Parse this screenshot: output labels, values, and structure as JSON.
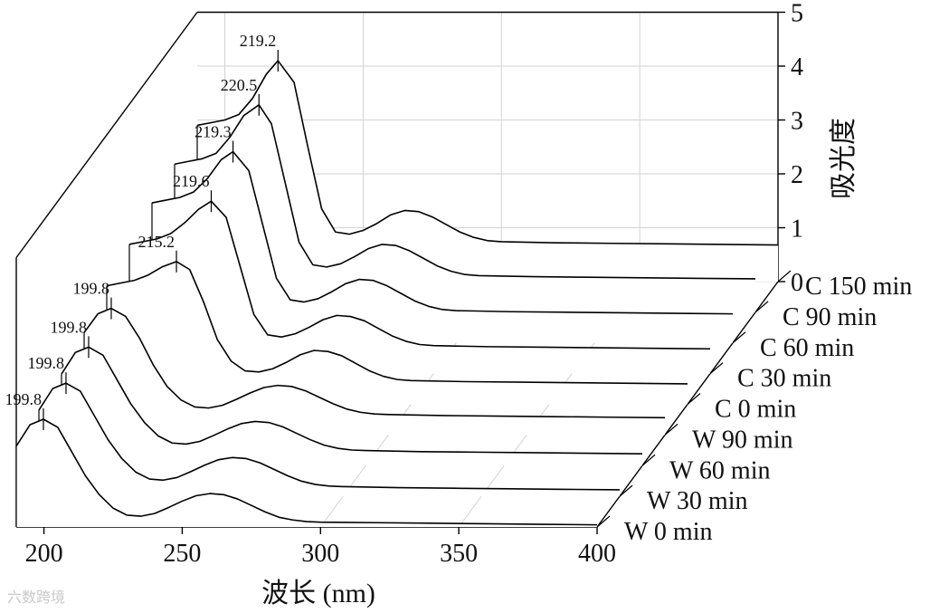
{
  "chart_data": {
    "type": "line",
    "subtype": "3d-waterfall",
    "xlabel": "波长 (nm)",
    "ylabel": "吸光度",
    "xlim": [
      190,
      400
    ],
    "xticks": [
      200,
      250,
      300,
      350,
      400
    ],
    "ylim": [
      0,
      5
    ],
    "yticks": [
      0,
      1,
      2,
      3,
      4,
      5
    ],
    "series": [
      {
        "name": "W 0 min",
        "peak_label": "199.8",
        "points": [
          [
            190,
            1.5
          ],
          [
            195,
            1.9
          ],
          [
            199.8,
            2.0
          ],
          [
            205,
            1.85
          ],
          [
            210,
            1.4
          ],
          [
            215,
            0.95
          ],
          [
            220,
            0.6
          ],
          [
            225,
            0.35
          ],
          [
            230,
            0.22
          ],
          [
            235,
            0.2
          ],
          [
            240,
            0.25
          ],
          [
            245,
            0.36
          ],
          [
            250,
            0.48
          ],
          [
            255,
            0.58
          ],
          [
            260,
            0.62
          ],
          [
            265,
            0.6
          ],
          [
            270,
            0.52
          ],
          [
            275,
            0.4
          ],
          [
            280,
            0.28
          ],
          [
            285,
            0.18
          ],
          [
            290,
            0.13
          ],
          [
            295,
            0.1
          ],
          [
            300,
            0.09
          ],
          [
            320,
            0.08
          ],
          [
            340,
            0.07
          ],
          [
            360,
            0.06
          ],
          [
            380,
            0.05
          ],
          [
            400,
            0.04
          ]
        ]
      },
      {
        "name": "W 30 min",
        "peak_label": "199.8",
        "points": [
          [
            190,
            1.6
          ],
          [
            195,
            2.0
          ],
          [
            199.8,
            2.1
          ],
          [
            205,
            1.95
          ],
          [
            210,
            1.5
          ],
          [
            215,
            1.05
          ],
          [
            220,
            0.7
          ],
          [
            225,
            0.45
          ],
          [
            230,
            0.32
          ],
          [
            235,
            0.3
          ],
          [
            240,
            0.35
          ],
          [
            245,
            0.46
          ],
          [
            250,
            0.58
          ],
          [
            255,
            0.68
          ],
          [
            260,
            0.72
          ],
          [
            265,
            0.7
          ],
          [
            270,
            0.62
          ],
          [
            275,
            0.5
          ],
          [
            280,
            0.38
          ],
          [
            285,
            0.28
          ],
          [
            290,
            0.22
          ],
          [
            295,
            0.19
          ],
          [
            300,
            0.18
          ],
          [
            320,
            0.16
          ],
          [
            340,
            0.15
          ],
          [
            360,
            0.14
          ],
          [
            380,
            0.13
          ],
          [
            400,
            0.12
          ]
        ]
      },
      {
        "name": "W 60 min",
        "peak_label": "199.8",
        "points": [
          [
            190,
            1.7
          ],
          [
            195,
            2.1
          ],
          [
            199.8,
            2.2
          ],
          [
            205,
            2.05
          ],
          [
            210,
            1.6
          ],
          [
            215,
            1.15
          ],
          [
            220,
            0.8
          ],
          [
            225,
            0.55
          ],
          [
            230,
            0.42
          ],
          [
            235,
            0.4
          ],
          [
            240,
            0.45
          ],
          [
            245,
            0.56
          ],
          [
            250,
            0.68
          ],
          [
            255,
            0.78
          ],
          [
            260,
            0.82
          ],
          [
            265,
            0.8
          ],
          [
            270,
            0.72
          ],
          [
            275,
            0.6
          ],
          [
            280,
            0.48
          ],
          [
            285,
            0.38
          ],
          [
            290,
            0.32
          ],
          [
            295,
            0.29
          ],
          [
            300,
            0.28
          ],
          [
            320,
            0.26
          ],
          [
            340,
            0.25
          ],
          [
            360,
            0.24
          ],
          [
            380,
            0.23
          ],
          [
            400,
            0.22
          ]
        ]
      },
      {
        "name": "W 90 min",
        "peak_label": "199.8",
        "points": [
          [
            190,
            1.9
          ],
          [
            195,
            2.25
          ],
          [
            199.8,
            2.35
          ],
          [
            205,
            2.2
          ],
          [
            210,
            1.8
          ],
          [
            215,
            1.3
          ],
          [
            220,
            0.9
          ],
          [
            225,
            0.65
          ],
          [
            230,
            0.52
          ],
          [
            235,
            0.5
          ],
          [
            240,
            0.55
          ],
          [
            245,
            0.66
          ],
          [
            250,
            0.78
          ],
          [
            255,
            0.88
          ],
          [
            260,
            0.92
          ],
          [
            265,
            0.9
          ],
          [
            270,
            0.82
          ],
          [
            275,
            0.7
          ],
          [
            280,
            0.58
          ],
          [
            285,
            0.48
          ],
          [
            290,
            0.42
          ],
          [
            295,
            0.39
          ],
          [
            300,
            0.38
          ],
          [
            320,
            0.36
          ],
          [
            340,
            0.35
          ],
          [
            360,
            0.34
          ],
          [
            380,
            0.33
          ],
          [
            400,
            0.32
          ]
        ]
      },
      {
        "name": "C 0 min",
        "peak_label": "215.2",
        "points": [
          [
            190,
            2.2
          ],
          [
            195,
            2.25
          ],
          [
            200,
            2.3
          ],
          [
            205,
            2.4
          ],
          [
            210,
            2.55
          ],
          [
            215.2,
            2.65
          ],
          [
            220,
            2.5
          ],
          [
            225,
            1.9
          ],
          [
            230,
            1.2
          ],
          [
            235,
            0.8
          ],
          [
            240,
            0.62
          ],
          [
            245,
            0.6
          ],
          [
            250,
            0.66
          ],
          [
            255,
            0.78
          ],
          [
            260,
            0.92
          ],
          [
            265,
            1.0
          ],
          [
            270,
            0.98
          ],
          [
            275,
            0.9
          ],
          [
            280,
            0.76
          ],
          [
            285,
            0.62
          ],
          [
            290,
            0.52
          ],
          [
            295,
            0.46
          ],
          [
            300,
            0.44
          ],
          [
            320,
            0.42
          ],
          [
            340,
            0.41
          ],
          [
            360,
            0.4
          ],
          [
            380,
            0.39
          ],
          [
            400,
            0.38
          ]
        ]
      },
      {
        "name": "C 30 min",
        "peak_label": "219.6",
        "points": [
          [
            190,
            2.4
          ],
          [
            195,
            2.45
          ],
          [
            200,
            2.5
          ],
          [
            205,
            2.6
          ],
          [
            210,
            2.8
          ],
          [
            215,
            3.05
          ],
          [
            219.6,
            3.2
          ],
          [
            225,
            2.9
          ],
          [
            230,
            2.0
          ],
          [
            235,
            1.1
          ],
          [
            240,
            0.72
          ],
          [
            245,
            0.68
          ],
          [
            250,
            0.74
          ],
          [
            255,
            0.86
          ],
          [
            260,
            1.0
          ],
          [
            265,
            1.08
          ],
          [
            270,
            1.06
          ],
          [
            275,
            0.98
          ],
          [
            280,
            0.84
          ],
          [
            285,
            0.7
          ],
          [
            290,
            0.6
          ],
          [
            295,
            0.54
          ],
          [
            300,
            0.52
          ],
          [
            320,
            0.5
          ],
          [
            340,
            0.49
          ],
          [
            360,
            0.48
          ],
          [
            380,
            0.47
          ],
          [
            400,
            0.46
          ]
        ]
      },
      {
        "name": "C 60 min",
        "peak_label": "219.3",
        "points": [
          [
            190,
            2.6
          ],
          [
            195,
            2.65
          ],
          [
            200,
            2.7
          ],
          [
            205,
            2.8
          ],
          [
            210,
            3.05
          ],
          [
            215,
            3.4
          ],
          [
            219.3,
            3.55
          ],
          [
            225,
            3.2
          ],
          [
            230,
            2.2
          ],
          [
            235,
            1.2
          ],
          [
            240,
            0.8
          ],
          [
            245,
            0.76
          ],
          [
            250,
            0.82
          ],
          [
            255,
            0.95
          ],
          [
            260,
            1.1
          ],
          [
            265,
            1.18
          ],
          [
            270,
            1.16
          ],
          [
            275,
            1.06
          ],
          [
            280,
            0.92
          ],
          [
            285,
            0.78
          ],
          [
            290,
            0.68
          ],
          [
            295,
            0.62
          ],
          [
            300,
            0.6
          ],
          [
            320,
            0.58
          ],
          [
            340,
            0.57
          ],
          [
            360,
            0.56
          ],
          [
            380,
            0.55
          ],
          [
            400,
            0.54
          ]
        ]
      },
      {
        "name": "C 90 min",
        "peak_label": "220.5",
        "points": [
          [
            190,
            2.75
          ],
          [
            195,
            2.8
          ],
          [
            200,
            2.85
          ],
          [
            205,
            2.95
          ],
          [
            210,
            3.25
          ],
          [
            215,
            3.65
          ],
          [
            220.5,
            3.85
          ],
          [
            225,
            3.5
          ],
          [
            230,
            2.4
          ],
          [
            235,
            1.3
          ],
          [
            240,
            0.88
          ],
          [
            245,
            0.84
          ],
          [
            250,
            0.9
          ],
          [
            255,
            1.03
          ],
          [
            260,
            1.18
          ],
          [
            265,
            1.26
          ],
          [
            270,
            1.24
          ],
          [
            275,
            1.14
          ],
          [
            280,
            1.0
          ],
          [
            285,
            0.86
          ],
          [
            290,
            0.76
          ],
          [
            295,
            0.7
          ],
          [
            300,
            0.68
          ],
          [
            320,
            0.66
          ],
          [
            340,
            0.65
          ],
          [
            360,
            0.64
          ],
          [
            380,
            0.63
          ],
          [
            400,
            0.62
          ]
        ]
      },
      {
        "name": "C 150 min",
        "peak_label": "219.2",
        "points": [
          [
            190,
            2.9
          ],
          [
            195,
            2.95
          ],
          [
            200,
            3.0
          ],
          [
            205,
            3.1
          ],
          [
            210,
            3.4
          ],
          [
            215,
            3.85
          ],
          [
            219.2,
            4.1
          ],
          [
            225,
            3.7
          ],
          [
            230,
            2.5
          ],
          [
            235,
            1.35
          ],
          [
            240,
            0.92
          ],
          [
            245,
            0.88
          ],
          [
            250,
            0.95
          ],
          [
            255,
            1.08
          ],
          [
            260,
            1.24
          ],
          [
            265,
            1.32
          ],
          [
            270,
            1.3
          ],
          [
            275,
            1.2
          ],
          [
            280,
            1.06
          ],
          [
            285,
            0.92
          ],
          [
            290,
            0.82
          ],
          [
            295,
            0.76
          ],
          [
            300,
            0.74
          ],
          [
            320,
            0.72
          ],
          [
            340,
            0.71
          ],
          [
            360,
            0.7
          ],
          [
            380,
            0.69
          ],
          [
            400,
            0.68
          ]
        ]
      }
    ]
  },
  "watermark": "六数跨境"
}
